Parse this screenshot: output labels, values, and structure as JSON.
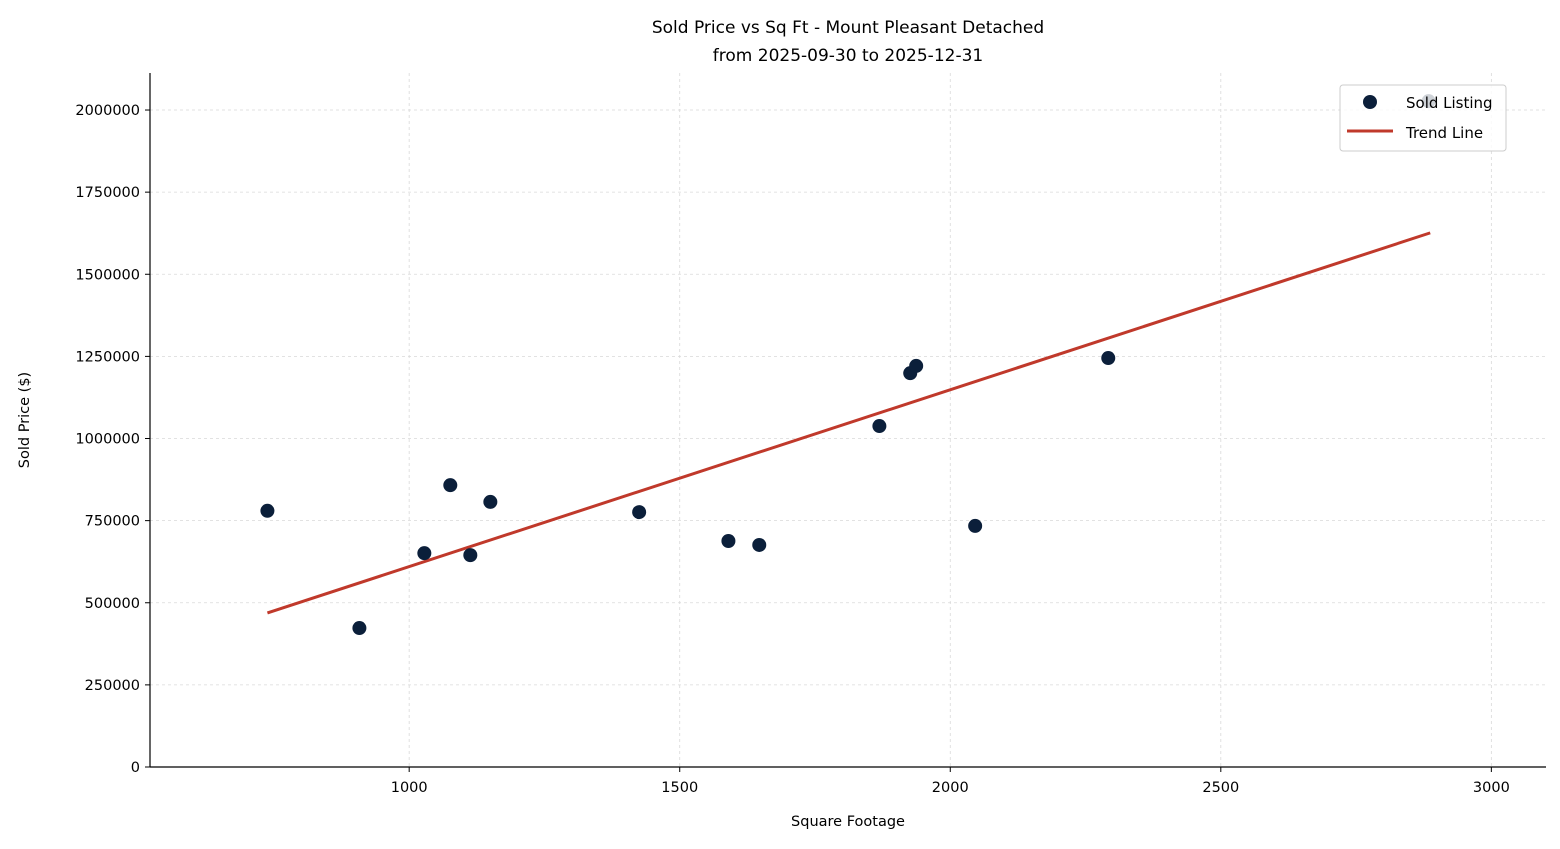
{
  "chart_data": {
    "type": "scatter",
    "title": "Sold Price vs Sq Ft - Mount Pleasant Detached",
    "subtitle": "from 2025-09-30 to 2025-12-31",
    "xlabel": "Square Footage",
    "ylabel": "Sold Price ($)",
    "xlim": [
      521,
      3101
    ],
    "ylim": [
      0,
      2112700
    ],
    "xticks": [
      1000,
      1500,
      2000,
      2500,
      3000
    ],
    "yticks": [
      0,
      250000,
      500000,
      750000,
      1000000,
      1250000,
      1500000,
      1750000,
      2000000
    ],
    "grid": true,
    "legend_placement": "top-right",
    "colors": {
      "points": "#0b1f3a",
      "trend": "#c0392b",
      "grid": "#d9d9d9"
    },
    "series": [
      {
        "name": "Sold Listing",
        "kind": "scatter",
        "points": [
          [
            738,
            780000
          ],
          [
            908,
            423000
          ],
          [
            1028,
            651000
          ],
          [
            1076,
            858000
          ],
          [
            1113,
            645000
          ],
          [
            1150,
            807000
          ],
          [
            1425,
            776000
          ],
          [
            1590,
            688000
          ],
          [
            1647,
            676000
          ],
          [
            1869,
            1038000
          ],
          [
            1926,
            1199000
          ],
          [
            1937,
            1221000
          ],
          [
            2046,
            734000
          ],
          [
            2292,
            1245000
          ],
          [
            2884,
            2027000
          ]
        ]
      },
      {
        "name": "Trend Line",
        "kind": "line",
        "points": [
          [
            738,
            469000
          ],
          [
            2887,
            1626000
          ]
        ]
      }
    ]
  }
}
